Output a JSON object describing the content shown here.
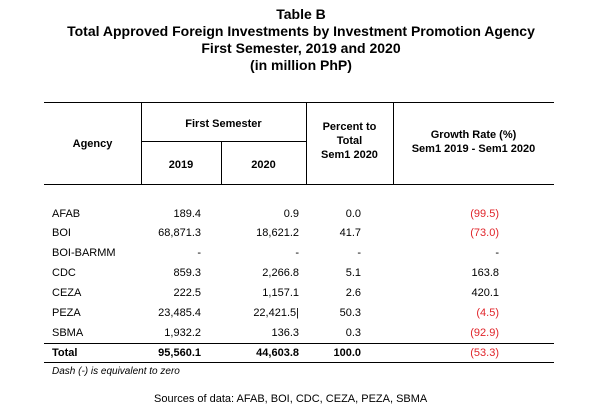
{
  "title": {
    "line1": "Table B",
    "line2": "Total Approved Foreign Investments by Investment Promotion Agency",
    "line3": "First Semester, 2019 and 2020",
    "line4": "(in million PhP)"
  },
  "header": {
    "agency": "Agency",
    "first_semester": "First Semester",
    "year1": "2019",
    "year2": "2020",
    "percent_line1": "Percent to",
    "percent_line2": "Total",
    "percent_line3": "Sem1 2020",
    "growth_line1": "Growth Rate (%)",
    "growth_line2": "Sem1 2019 - Sem1 2020"
  },
  "rows": [
    {
      "agency": "AFAB",
      "v2019": "189.4",
      "v2020": "0.9",
      "pct": "0.0",
      "growth": "(99.5)"
    },
    {
      "agency": "BOI",
      "v2019": "68,871.3",
      "v2020": "18,621.2",
      "pct": "41.7",
      "growth": "(73.0)"
    },
    {
      "agency": "BOI-BARMM",
      "v2019": "-",
      "v2020": "-",
      "pct": "-",
      "growth": "-"
    },
    {
      "agency": "CDC",
      "v2019": "859.3",
      "v2020": "2,266.8",
      "pct": "5.1",
      "growth": "163.8"
    },
    {
      "agency": "CEZA",
      "v2019": "222.5",
      "v2020": "1,157.1",
      "pct": "2.6",
      "growth": "420.1"
    },
    {
      "agency": "PEZA",
      "v2019": "23,485.4",
      "v2020": "22,421.5|",
      "pct": "50.3",
      "growth": "(4.5)"
    },
    {
      "agency": "SBMA",
      "v2019": "1,932.2",
      "v2020": "136.3",
      "pct": "0.3",
      "growth": "(92.9)"
    }
  ],
  "total": {
    "agency": "Total",
    "v2019": "95,560.1",
    "v2020": "44,603.8",
    "pct": "100.0",
    "growth": "(53.3)"
  },
  "note": "Dash (-) is equivalent to zero",
  "source": "Sources of data:  AFAB, BOI, CDC, CEZA, PEZA, SBMA",
  "colors": {
    "negative": "#e0242a",
    "text": "#000000"
  }
}
